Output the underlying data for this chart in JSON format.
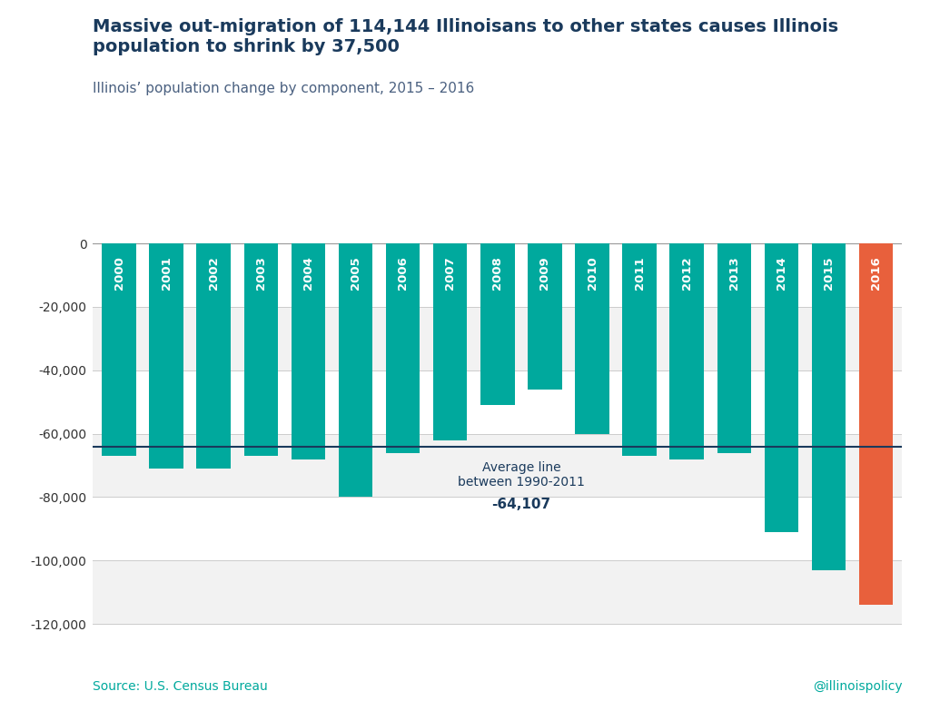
{
  "title_bold": "Massive out-migration of 114,144 Illinoisans to other states causes Illinois\npopulation to shrink by 37,500",
  "subtitle": "Illinois’ population change by component, 2015 – 2016",
  "categories": [
    "2000",
    "2001",
    "2002",
    "2003",
    "2004",
    "2005",
    "2006",
    "2007",
    "2008",
    "2009",
    "2010",
    "2011",
    "2012",
    "2013",
    "2014",
    "2015",
    "2016"
  ],
  "values": [
    -67000,
    -71000,
    -71000,
    -67000,
    -68000,
    -80000,
    -66000,
    -62000,
    -51000,
    -46000,
    -60000,
    -67000,
    -68000,
    -66000,
    -91000,
    -103000,
    -114000
  ],
  "bar_colors": [
    "#00a99d",
    "#00a99d",
    "#00a99d",
    "#00a99d",
    "#00a99d",
    "#00a99d",
    "#00a99d",
    "#00a99d",
    "#00a99d",
    "#00a99d",
    "#00a99d",
    "#00a99d",
    "#00a99d",
    "#00a99d",
    "#00a99d",
    "#00a99d",
    "#e8603c"
  ],
  "average_line": -64107,
  "average_label_line1": "Average line",
  "average_label_line2": "between 1990-2011",
  "average_label_value": "-64,107",
  "average_line_color": "#1a3a5c",
  "ylim_min": -125000,
  "ylim_max": 5000,
  "ytick_values": [
    0,
    -20000,
    -40000,
    -60000,
    -80000,
    -100000,
    -120000
  ],
  "background_color": "#ffffff",
  "plot_bg_color": "#ffffff",
  "bar_teal": "#00a99d",
  "bar_orange": "#e8603c",
  "title_color": "#1a3a5c",
  "subtitle_color": "#4a6080",
  "source_text": "Source: U.S. Census Bureau",
  "credit_text": "@illinoispolicy",
  "footer_color": "#00a99d",
  "stripe_light": "#f2f2f2",
  "stripe_white": "#ffffff",
  "label_color": "#ffffff",
  "annotation_text_color": "#1a3a5c"
}
